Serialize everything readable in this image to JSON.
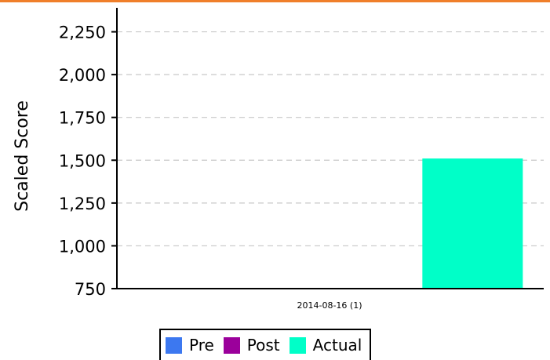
{
  "accent_color": "#f07f2a",
  "chart_data": {
    "type": "bar",
    "title": "",
    "xlabel": "",
    "ylabel": "Scaled Score",
    "categories": [
      "2014-08-16 (1)"
    ],
    "series": [
      {
        "name": "Pre",
        "color": "#3c78f0",
        "values": [
          null
        ]
      },
      {
        "name": "Post",
        "color": "#9b009b",
        "values": [
          null
        ]
      },
      {
        "name": "Actual",
        "color": "#00ffc8",
        "values": [
          1510
        ]
      }
    ],
    "ylim": [
      750,
      2390
    ],
    "yticks": [
      750,
      1000,
      1250,
      1500,
      1750,
      2000,
      2250
    ],
    "ytick_labels": [
      "750",
      "1,000",
      "1,250",
      "1,500",
      "1,750",
      "2,000",
      "2,250"
    ],
    "grid": true,
    "legend_position": "bottom"
  }
}
